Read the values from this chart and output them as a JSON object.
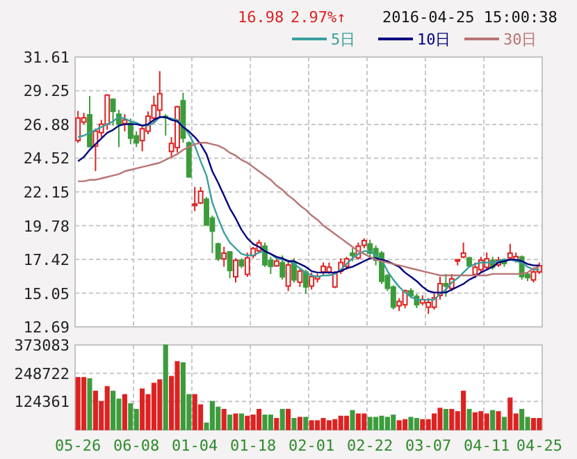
{
  "chart_data": [
    {
      "type": "candlestick",
      "annotations": [
        "16.98",
        "2.97%↑",
        "2016-04-25 15:00:38"
      ],
      "categories": [
        null,
        null,
        null,
        null,
        null,
        null,
        null,
        null,
        null,
        null,
        null,
        null,
        null,
        null,
        null,
        null,
        null,
        null,
        null,
        null,
        null,
        null,
        null,
        null,
        null,
        null,
        null,
        null,
        null,
        null,
        null,
        null,
        null,
        null,
        null,
        null,
        null,
        null,
        null,
        null,
        null,
        null,
        null,
        null,
        null,
        null,
        null,
        null,
        null,
        null,
        null,
        null,
        null,
        null,
        null,
        null,
        null,
        null,
        null,
        null,
        null,
        null,
        null,
        null,
        null,
        null,
        null,
        null,
        null,
        null,
        null,
        null,
        null,
        null,
        null,
        null,
        null,
        null,
        null,
        null
      ],
      "ohlc": [
        [
          25.75,
          27.83,
          25.59,
          27.33
        ],
        [
          27.05,
          27.7,
          26.9,
          27.35
        ],
        [
          27.56,
          28.88,
          25.26,
          25.33
        ],
        [
          25.36,
          26.6,
          23.61,
          26.41
        ],
        [
          26.31,
          27.2,
          26.0,
          26.9
        ],
        [
          26.9,
          29.0,
          26.5,
          28.94
        ],
        [
          28.65,
          28.7,
          26.8,
          27.8
        ],
        [
          27.6,
          27.9,
          25.3,
          26.9
        ],
        [
          26.95,
          27.6,
          26.4,
          27.2
        ],
        [
          26.97,
          27.3,
          25.5,
          25.92
        ],
        [
          26.08,
          26.4,
          25.3,
          25.59
        ],
        [
          25.75,
          26.9,
          25.0,
          26.58
        ],
        [
          26.41,
          27.8,
          26.2,
          27.46
        ],
        [
          27.33,
          28.9,
          27.0,
          28.22
        ],
        [
          27.89,
          30.62,
          27.3,
          29.04
        ],
        [
          27.45,
          27.6,
          26.1,
          27.4
        ],
        [
          24.99,
          26.0,
          24.5,
          25.55
        ],
        [
          25.26,
          28.2,
          24.9,
          28.12
        ],
        [
          28.55,
          29.1,
          25.6,
          25.92
        ],
        [
          25.59,
          25.7,
          23.15,
          23.2
        ],
        [
          21.2,
          22.5,
          20.8,
          21.3
        ],
        [
          21.38,
          22.5,
          21.3,
          22.2
        ],
        [
          21.64,
          21.8,
          19.8,
          19.83
        ],
        [
          20.32,
          20.5,
          17.86,
          19.4
        ],
        [
          18.51,
          18.6,
          17.3,
          17.46
        ],
        [
          17.46,
          18.3,
          16.9,
          17.86
        ],
        [
          17.95,
          18.0,
          16.1,
          16.64
        ],
        [
          16.2,
          17.5,
          15.8,
          17.36
        ],
        [
          17.36,
          17.5,
          16.8,
          16.97
        ],
        [
          16.37,
          17.9,
          16.2,
          17.53
        ],
        [
          17.69,
          18.3,
          17.5,
          18.18
        ],
        [
          18.02,
          18.8,
          17.9,
          18.58
        ],
        [
          18.35,
          18.6,
          16.9,
          17.04
        ],
        [
          17.36,
          17.6,
          16.4,
          16.93
        ],
        [
          16.97,
          17.6,
          16.9,
          17.3
        ],
        [
          17.2,
          17.7,
          16.0,
          16.2
        ],
        [
          15.55,
          17.4,
          15.2,
          17.03
        ],
        [
          17.2,
          17.5,
          15.8,
          15.98
        ],
        [
          15.82,
          16.8,
          15.5,
          16.6
        ],
        [
          16.54,
          16.7,
          15.0,
          15.49
        ],
        [
          15.55,
          16.5,
          15.3,
          16.21
        ],
        [
          16.05,
          16.4,
          15.8,
          16.21
        ],
        [
          16.54,
          17.2,
          16.3,
          16.94
        ],
        [
          16.54,
          17.2,
          16.4,
          16.87
        ],
        [
          15.49,
          16.6,
          15.4,
          16.47
        ],
        [
          16.6,
          17.5,
          16.4,
          17.2
        ],
        [
          16.93,
          17.6,
          16.7,
          17.46
        ],
        [
          17.86,
          18.2,
          17.3,
          17.69
        ],
        [
          17.53,
          18.6,
          17.4,
          18.35
        ],
        [
          18.41,
          18.9,
          18.2,
          18.74
        ],
        [
          18.51,
          18.8,
          17.6,
          17.86
        ],
        [
          18.18,
          18.4,
          17.0,
          17.36
        ],
        [
          17.86,
          18.0,
          15.7,
          15.88
        ],
        [
          16.28,
          16.4,
          15.2,
          15.39
        ],
        [
          15.49,
          15.6,
          13.9,
          14.07
        ],
        [
          14.17,
          14.7,
          13.8,
          14.47
        ],
        [
          14.24,
          15.3,
          14.0,
          15.22
        ],
        [
          15.22,
          15.4,
          14.7,
          14.89
        ],
        [
          14.83,
          15.0,
          14.0,
          14.24
        ],
        [
          14.37,
          14.9,
          14.2,
          14.6
        ],
        [
          14.07,
          14.7,
          13.6,
          14.4
        ],
        [
          14.07,
          15.1,
          13.9,
          14.73
        ],
        [
          14.89,
          16.2,
          14.6,
          15.72
        ],
        [
          15.72,
          16.4,
          14.8,
          15.55
        ],
        [
          15.39,
          16.4,
          15.2,
          16.05
        ],
        [
          17.3,
          17.4,
          17.0,
          17.4
        ],
        [
          17.59,
          18.6,
          17.5,
          17.86
        ],
        [
          17.53,
          17.6,
          16.9,
          16.97
        ],
        [
          16.37,
          17.2,
          16.1,
          16.87
        ],
        [
          16.7,
          17.6,
          16.5,
          17.36
        ],
        [
          16.87,
          17.9,
          16.7,
          17.46
        ],
        [
          17.36,
          17.6,
          16.7,
          16.87
        ],
        [
          17.03,
          17.6,
          16.9,
          17.36
        ],
        [
          17.4,
          17.5,
          16.9,
          17.13
        ],
        [
          17.53,
          18.51,
          17.4,
          17.86
        ],
        [
          17.36,
          17.9,
          17.2,
          17.62
        ],
        [
          17.59,
          17.7,
          16.0,
          16.21
        ],
        [
          16.37,
          16.5,
          15.9,
          16.14
        ],
        [
          15.98,
          16.7,
          15.8,
          16.54
        ],
        [
          16.54,
          17.2,
          16.4,
          16.98
        ]
      ],
      "colors": [
        "#dd2222",
        "#dd2222",
        "#3c9c3c",
        "#dd2222",
        "#dd2222",
        "#dd2222",
        "#3c9c3c",
        "#3c9c3c",
        "#dd2222",
        "#3c9c3c",
        "#3c9c3c",
        "#dd2222",
        "#dd2222",
        "#dd2222",
        "#dd2222",
        "#3c9c3c",
        "#dd2222",
        "#dd2222",
        "#3c9c3c",
        "#3c9c3c",
        "#dd2222",
        "#dd2222",
        "#3c9c3c",
        "#3c9c3c",
        "#3c9c3c",
        "#dd2222",
        "#3c9c3c",
        "#dd2222",
        "#3c9c3c",
        "#dd2222",
        "#dd2222",
        "#dd2222",
        "#3c9c3c",
        "#3c9c3c",
        "#dd2222",
        "#3c9c3c",
        "#dd2222",
        "#3c9c3c",
        "#dd2222",
        "#3c9c3c",
        "#dd2222",
        "#dd2222",
        "#dd2222",
        "#dd2222",
        "#dd2222",
        "#dd2222",
        "#dd2222",
        "#3c9c3c",
        "#dd2222",
        "#dd2222",
        "#3c9c3c",
        "#3c9c3c",
        "#3c9c3c",
        "#3c9c3c",
        "#3c9c3c",
        "#dd2222",
        "#dd2222",
        "#3c9c3c",
        "#3c9c3c",
        "#dd2222",
        "#dd2222",
        "#dd2222",
        "#dd2222",
        "#3c9c3c",
        "#dd2222",
        "#dd2222",
        "#dd2222",
        "#3c9c3c",
        "#dd2222",
        "#dd2222",
        "#dd2222",
        "#3c9c3c",
        "#dd2222",
        "#3c9c3c",
        "#dd2222",
        "#dd2222",
        "#3c9c3c",
        "#3c9c3c",
        "#dd2222",
        "#dd2222"
      ],
      "series": [
        {
          "name": "5日",
          "type": "line",
          "color": "#3a9e9e",
          "values": [
            26.0,
            26.1,
            26.3,
            26.5,
            26.7,
            26.9,
            27.1,
            27.4,
            27.3,
            27.1,
            27.0,
            26.8,
            26.8,
            27.0,
            27.4,
            27.4,
            27.3,
            27.2,
            26.8,
            26.2,
            25.4,
            24.3,
            23.3,
            21.4,
            20.3,
            19.3,
            18.6,
            18.2,
            17.8,
            17.7,
            17.7,
            17.9,
            18.0,
            17.8,
            17.5,
            17.4,
            17.3,
            17.1,
            16.8,
            16.5,
            16.3,
            16.2,
            16.3,
            16.3,
            16.4,
            16.7,
            17.1,
            17.5,
            17.8,
            18.0,
            18.0,
            17.7,
            17.4,
            16.6,
            16.0,
            15.5,
            15.1,
            14.8,
            14.6,
            14.6,
            14.6,
            14.6,
            15.0,
            15.3,
            15.8,
            16.1,
            16.5,
            16.9,
            17.1,
            17.2,
            17.2,
            17.2,
            17.3,
            17.4,
            17.4,
            17.3,
            17.2,
            16.9,
            16.7,
            16.7
          ]
        },
        {
          "name": "10日",
          "type": "line",
          "color": "#000080",
          "values": [
            24.3,
            24.6,
            25.1,
            25.5,
            25.9,
            26.3,
            26.5,
            26.8,
            26.9,
            26.9,
            26.9,
            26.8,
            26.9,
            27.2,
            27.4,
            27.4,
            27.2,
            27.1,
            26.7,
            26.4,
            26.0,
            25.5,
            24.8,
            23.6,
            22.8,
            21.9,
            21.0,
            20.3,
            19.5,
            18.9,
            18.5,
            18.3,
            18.0,
            17.8,
            17.6,
            17.5,
            17.3,
            17.3,
            17.1,
            16.9,
            16.6,
            16.5,
            16.5,
            16.5,
            16.5,
            16.6,
            16.8,
            16.9,
            17.1,
            17.3,
            17.5,
            17.5,
            17.4,
            17.3,
            17.1,
            16.9,
            16.5,
            16.2,
            15.9,
            15.5,
            15.2,
            15.1,
            15.1,
            15.1,
            15.3,
            15.5,
            15.7,
            16.0,
            16.2,
            16.5,
            16.7,
            16.9,
            17.2,
            17.3,
            17.4,
            17.4,
            17.3,
            17.1,
            17.0,
            17.0
          ]
        },
        {
          "name": "30日",
          "type": "line",
          "color": "#b87474",
          "values": [
            22.9,
            22.9,
            23.0,
            23.0,
            23.1,
            23.2,
            23.3,
            23.4,
            23.6,
            23.7,
            23.8,
            23.9,
            24.0,
            24.1,
            24.2,
            24.4,
            24.6,
            24.8,
            25.1,
            25.3,
            25.5,
            25.6,
            25.6,
            25.5,
            25.4,
            25.2,
            24.9,
            24.7,
            24.4,
            24.2,
            23.9,
            23.6,
            23.3,
            23.0,
            22.6,
            22.3,
            21.9,
            21.6,
            21.2,
            20.9,
            20.5,
            20.2,
            19.8,
            19.5,
            19.2,
            18.9,
            18.6,
            18.3,
            18.0,
            17.8,
            17.6,
            17.4,
            17.3,
            17.2,
            17.1,
            17.0,
            16.9,
            16.8,
            16.7,
            16.6,
            16.5,
            16.4,
            16.3,
            16.3,
            16.3,
            16.3,
            16.3,
            16.3,
            16.3,
            16.3,
            16.3,
            16.4,
            16.4,
            16.4,
            16.4,
            16.4,
            16.4,
            16.5,
            16.8,
            16.9
          ]
        }
      ],
      "ylim": [
        12.69,
        31.61
      ],
      "yticks": [
        12.69,
        15.05,
        17.42,
        19.78,
        22.15,
        24.52,
        26.88,
        29.25,
        31.61
      ],
      "grid": true,
      "legend": "top right",
      "tick_labels": "y"
    },
    {
      "type": "bar",
      "categories": [
        "05-26",
        null,
        null,
        null,
        null,
        null,
        null,
        null,
        null,
        null,
        "06-08",
        null,
        null,
        null,
        null,
        null,
        null,
        null,
        null,
        null,
        "01-04",
        null,
        null,
        null,
        null,
        null,
        null,
        null,
        null,
        null,
        "01-18",
        null,
        null,
        null,
        null,
        null,
        null,
        null,
        null,
        null,
        "02-01",
        null,
        null,
        null,
        null,
        null,
        null,
        null,
        null,
        null,
        "02-22",
        null,
        null,
        null,
        null,
        null,
        null,
        null,
        null,
        null,
        "03-07",
        null,
        null,
        null,
        null,
        null,
        null,
        null,
        null,
        null,
        "04-11",
        null,
        null,
        null,
        null,
        null,
        null,
        null,
        null,
        "04-25"
      ],
      "values": [
        230000,
        230000,
        225000,
        170000,
        125000,
        190000,
        170000,
        135000,
        155000,
        115000,
        90000,
        180000,
        155000,
        205000,
        220000,
        373083,
        235000,
        300000,
        295000,
        155000,
        155000,
        110000,
        30000,
        125000,
        100000,
        90000,
        65000,
        70000,
        70000,
        60000,
        65000,
        90000,
        65000,
        65000,
        50000,
        90000,
        90000,
        50000,
        55000,
        55000,
        40000,
        40000,
        50000,
        40000,
        45000,
        60000,
        60000,
        85000,
        70000,
        70000,
        55000,
        55000,
        60000,
        55000,
        65000,
        40000,
        45000,
        55000,
        50000,
        45000,
        45000,
        70000,
        95000,
        90000,
        90000,
        80000,
        170000,
        90000,
        75000,
        80000,
        70000,
        85000,
        80000,
        55000,
        140000,
        70000,
        90000,
        55000,
        50000,
        50000
      ],
      "colors": [
        "#dd2222",
        "#dd2222",
        "#3c9c3c",
        "#dd2222",
        "#dd2222",
        "#dd2222",
        "#3c9c3c",
        "#3c9c3c",
        "#dd2222",
        "#3c9c3c",
        "#3c9c3c",
        "#dd2222",
        "#dd2222",
        "#dd2222",
        "#dd2222",
        "#3c9c3c",
        "#dd2222",
        "#dd2222",
        "#3c9c3c",
        "#3c9c3c",
        "#dd2222",
        "#dd2222",
        "#3c9c3c",
        "#3c9c3c",
        "#3c9c3c",
        "#dd2222",
        "#3c9c3c",
        "#dd2222",
        "#3c9c3c",
        "#dd2222",
        "#dd2222",
        "#dd2222",
        "#3c9c3c",
        "#3c9c3c",
        "#dd2222",
        "#3c9c3c",
        "#dd2222",
        "#3c9c3c",
        "#dd2222",
        "#3c9c3c",
        "#dd2222",
        "#dd2222",
        "#dd2222",
        "#dd2222",
        "#dd2222",
        "#dd2222",
        "#dd2222",
        "#3c9c3c",
        "#dd2222",
        "#dd2222",
        "#3c9c3c",
        "#3c9c3c",
        "#3c9c3c",
        "#3c9c3c",
        "#3c9c3c",
        "#dd2222",
        "#dd2222",
        "#3c9c3c",
        "#3c9c3c",
        "#dd2222",
        "#dd2222",
        "#dd2222",
        "#dd2222",
        "#3c9c3c",
        "#dd2222",
        "#dd2222",
        "#dd2222",
        "#3c9c3c",
        "#dd2222",
        "#dd2222",
        "#dd2222",
        "#3c9c3c",
        "#dd2222",
        "#3c9c3c",
        "#dd2222",
        "#dd2222",
        "#3c9c3c",
        "#3c9c3c",
        "#dd2222",
        "#dd2222"
      ],
      "ylim": [
        0,
        373083
      ],
      "yticks": [
        124361,
        248722,
        373083
      ],
      "grid": true
    }
  ]
}
